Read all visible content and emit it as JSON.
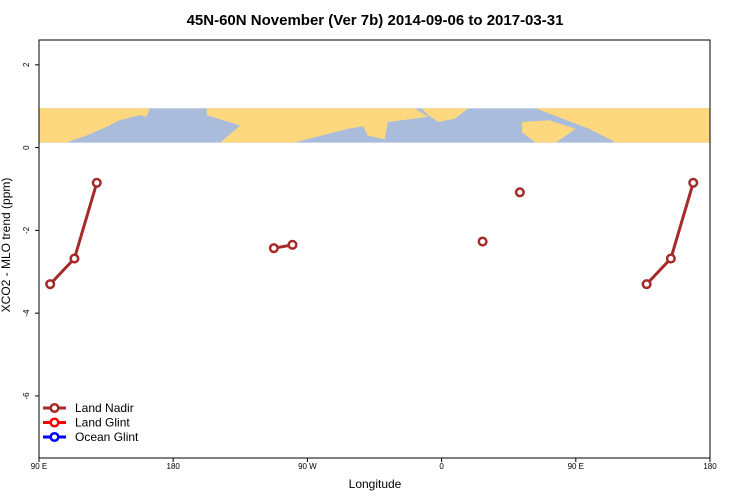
{
  "chart_data": {
    "type": "line",
    "title": "45N-60N November (Ver 7b)   2014-09-06 to 2017-03-31",
    "xlabel": "Longitude",
    "ylabel": "XCO2 - MLO trend (ppm)",
    "xlim": [
      90,
      450
    ],
    "ylim": [
      -7.5,
      2.6
    ],
    "x_ticks": [
      {
        "value": 90,
        "label": "90 E"
      },
      {
        "value": 162,
        "label": "180"
      },
      {
        "value": 234,
        "label": "90 W"
      },
      {
        "value": 306,
        "label": "0"
      },
      {
        "value": 378,
        "label": "90 E"
      },
      {
        "value": 450,
        "label": "180"
      }
    ],
    "y_ticks": [
      {
        "value": 2,
        "label": "2"
      },
      {
        "value": 0,
        "label": "0"
      },
      {
        "value": -2,
        "label": "-2"
      },
      {
        "value": -4,
        "label": "-4"
      },
      {
        "value": -6,
        "label": "-6"
      }
    ],
    "map_band": {
      "y_top": 0.95,
      "y_bottom": 0.12,
      "ocean_color": "#a9bcdc",
      "land_color": "#fdd87e"
    },
    "series": [
      {
        "name": "Land Nadir",
        "color": "#a52a2a",
        "segments": [
          [
            {
              "x": 96,
              "y": -3.3
            },
            {
              "x": 109,
              "y": -2.68
            },
            {
              "x": 121,
              "y": -0.85
            }
          ],
          [
            {
              "x": 216,
              "y": -2.43
            },
            {
              "x": 226,
              "y": -2.35
            }
          ],
          [
            {
              "x": 328,
              "y": -2.27
            }
          ],
          [
            {
              "x": 348,
              "y": -1.08
            }
          ],
          [
            {
              "x": 416,
              "y": -3.3
            },
            {
              "x": 429,
              "y": -2.68
            },
            {
              "x": 441,
              "y": -0.85
            }
          ]
        ]
      },
      {
        "name": "Land Glint",
        "color": "#ff0000",
        "segments": []
      },
      {
        "name": "Ocean Glint",
        "color": "#0000ff",
        "segments": []
      }
    ],
    "legend_position": "bottom-left"
  }
}
